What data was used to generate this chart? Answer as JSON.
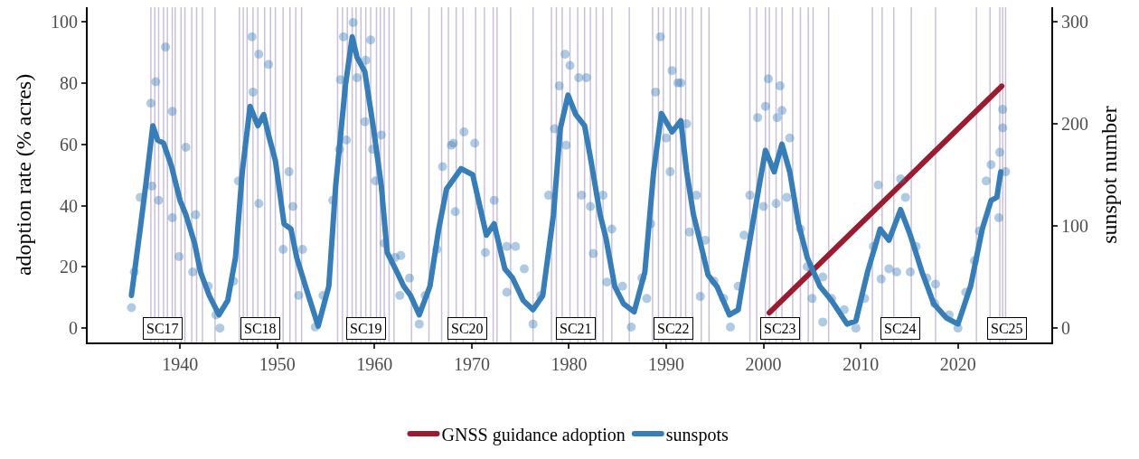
{
  "chart_data": {
    "type": "line",
    "xlabel": null,
    "ylabel": "adoption rate (% acres)",
    "y2label": "sunspot number",
    "xlim": [
      1930.5,
      2029.6
    ],
    "xticks": [
      1940,
      1950,
      1960,
      1970,
      1980,
      1990,
      2000,
      2010,
      2020
    ],
    "ylim": [
      -4.7,
      104.8
    ],
    "yticks": [
      0,
      20,
      40,
      60,
      80,
      100
    ],
    "y2lim": [
      -14,
      314
    ],
    "y2ticks": [
      0,
      100,
      200,
      300
    ],
    "grid": false,
    "legend": "bottom",
    "line_style": "solid",
    "series": [
      {
        "name": "GNSS guidance adoption",
        "color": "#9b1c31",
        "x": [
          2000.6,
          2024.5
        ],
        "values": [
          5,
          79
        ]
      },
      {
        "name": "sunspots",
        "type": "line",
        "axis": "y2",
        "color": "#377eb8",
        "x": [
          1935.0,
          1935.9,
          1936.5,
          1937.2,
          1937.7,
          1938.3,
          1939.1,
          1940.0,
          1940.6,
          1941.5,
          1942.1,
          1943.0,
          1944.0,
          1944.9,
          1945.7,
          1946.4,
          1947.2,
          1948.0,
          1948.6,
          1949.1,
          1949.8,
          1950.7,
          1951.4,
          1952.0,
          1952.9,
          1954.2,
          1955.3,
          1956.0,
          1957.0,
          1957.7,
          1958.2,
          1959.0,
          1959.9,
          1960.7,
          1961.3,
          1962.3,
          1963.0,
          1963.7,
          1964.6,
          1965.7,
          1966.6,
          1967.4,
          1968.9,
          1970.1,
          1971.5,
          1972.3,
          1973.4,
          1974.2,
          1975.3,
          1976.3,
          1977.3,
          1978.4,
          1979.1,
          1979.9,
          1980.7,
          1981.6,
          1982.2,
          1983.2,
          1983.8,
          1984.7,
          1985.6,
          1986.7,
          1987.8,
          1988.7,
          1989.5,
          1990.6,
          1991.5,
          1992.1,
          1992.8,
          1993.4,
          1994.3,
          1995.2,
          1996.5,
          1997.4,
          1998.3,
          1999.3,
          2000.2,
          2001.1,
          2001.9,
          2002.7,
          2003.6,
          2004.5,
          2005.8,
          2007.0,
          2008.6,
          2009.5,
          2010.7,
          2012.0,
          2012.9,
          2014.1,
          2015.1,
          2016.3,
          2017.5,
          2018.8,
          2020.0,
          2021.3,
          2022.5,
          2023.4,
          2024.0,
          2024.4
        ],
        "values": [
          32,
          97,
          142,
          198,
          184,
          181,
          159,
          125,
          111,
          83,
          55,
          32,
          13,
          27,
          69,
          153,
          217,
          198,
          209,
          189,
          164,
          102,
          97,
          69,
          41,
          2,
          41,
          139,
          237,
          285,
          265,
          251,
          195,
          139,
          74,
          55,
          41,
          32,
          13,
          41,
          97,
          136,
          156,
          150,
          91,
          102,
          58,
          49,
          27,
          18,
          32,
          111,
          195,
          228,
          209,
          198,
          167,
          111,
          88,
          41,
          24,
          16,
          55,
          153,
          210,
          192,
          203,
          153,
          111,
          88,
          52,
          41,
          13,
          18,
          69,
          125,
          174,
          153,
          180,
          153,
          102,
          69,
          41,
          27,
          4,
          7,
          55,
          97,
          86,
          116,
          91,
          55,
          24,
          10,
          4,
          41,
          97,
          125,
          128,
          153
        ]
      },
      {
        "type": "scatter",
        "axis": "y2",
        "color": "#377eb8",
        "marker": "circle",
        "x": [
          1935.0,
          1935.3,
          1935.9,
          1937.0,
          1937.5,
          1938.5,
          1937.1,
          1937.8,
          1939.2,
          1940.6,
          1939.9,
          1939.2,
          1941.6,
          1941.3,
          1942.9,
          1944.1,
          1943.7,
          1945.5,
          1946.0,
          1947.4,
          1948.1,
          1949.1,
          1947.5,
          1948.1,
          1951.2,
          1951.6,
          1950.6,
          1952.6,
          1952.2,
          1953.9,
          1954.7,
          1955.7,
          1956.4,
          1956.5,
          1956.8,
          1957.8,
          1959.6,
          1958.2,
          1959.1,
          1959.0,
          1957.1,
          1959.8,
          1960.1,
          1960.7,
          1961.0,
          1962.1,
          1962.7,
          1962.6,
          1963.6,
          1964.6,
          1965.2,
          1966.4,
          1967.0,
          1967.9,
          1968.1,
          1969.2,
          1970.3,
          1968.3,
          1971.4,
          1972.3,
          1973.6,
          1974.5,
          1973.6,
          1975.4,
          1976.3,
          1977.1,
          1977.9,
          1978.5,
          1979.0,
          1979.6,
          1980.1,
          1981.0,
          1981.8,
          1979.7,
          1981.3,
          1982.2,
          1982.5,
          1983.5,
          1984.4,
          1983.9,
          1985.5,
          1986.4,
          1987.5,
          1988.0,
          1988.4,
          1988.9,
          1989.4,
          1990.6,
          1991.2,
          1991.5,
          1990.4,
          1990.0,
          1992.1,
          1993.1,
          1992.4,
          1994.0,
          1993.5,
          1994.9,
          1995.9,
          1996.6,
          1997.4,
          1998.0,
          1998.6,
          1999.4,
          2000.5,
          2000.2,
          2001.7,
          2001.4,
          2001.3,
          2000.0,
          2001.9,
          2002.7,
          2002.4,
          2003.8,
          2004.5,
          2005.0,
          2006.1,
          2006.1,
          2007.0,
          2008.3,
          2009.5,
          2010.4,
          2011.3,
          2011.8,
          2012.1,
          2012.9,
          2014.1,
          2014.6,
          2013.7,
          2015.1,
          2015.7,
          2016.8,
          2017.7,
          2017.6,
          2019.1,
          2020.0,
          2020.8,
          2021.7,
          2022.2,
          2022.9,
          2023.4,
          2024.2,
          2024.3,
          2024.6,
          2024.6,
          2024.9
        ],
        "values": [
          20,
          55,
          128,
          220,
          241,
          275,
          139,
          125,
          212,
          177,
          70,
          108,
          111,
          55,
          41,
          0,
          13,
          46,
          144,
          285,
          268,
          258,
          231,
          122,
          153,
          119,
          77,
          77,
          32,
          1,
          32,
          125,
          175,
          243,
          285,
          299,
          282,
          245,
          262,
          202,
          184,
          175,
          144,
          189,
          83,
          69,
          71,
          32,
          49,
          4,
          32,
          77,
          158,
          179,
          181,
          192,
          181,
          114,
          74,
          125,
          80,
          80,
          35,
          58,
          4,
          32,
          130,
          195,
          237,
          268,
          257,
          245,
          245,
          179,
          130,
          119,
          73,
          130,
          97,
          45,
          41,
          1,
          49,
          29,
          102,
          231,
          285,
          252,
          240,
          240,
          153,
          186,
          200,
          130,
          94,
          86,
          31,
          46,
          29,
          1,
          41,
          91,
          130,
          206,
          244,
          217,
          237,
          206,
          122,
          119,
          213,
          186,
          128,
          97,
          60,
          29,
          50,
          6,
          29,
          18,
          0,
          29,
          80,
          140,
          48,
          58,
          146,
          128,
          55,
          55,
          80,
          49,
          43,
          24,
          13,
          0,
          35,
          66,
          95,
          144,
          160,
          108,
          172,
          214,
          196,
          153
        ]
      }
    ],
    "annotations": [
      {
        "text": "SC17",
        "x": 1938.2,
        "y": 0
      },
      {
        "text": "SC18",
        "x": 1948.3,
        "y": 0
      },
      {
        "text": "SC19",
        "x": 1959.1,
        "y": 0
      },
      {
        "text": "SC20",
        "x": 1969.5,
        "y": 0
      },
      {
        "text": "SC21",
        "x": 1980.7,
        "y": 0
      },
      {
        "text": "SC22",
        "x": 1990.7,
        "y": 0
      },
      {
        "text": "SC23",
        "x": 2001.7,
        "y": 0
      },
      {
        "text": "SC24",
        "x": 2014.1,
        "y": 0
      },
      {
        "text": "SC25",
        "x": 2025.0,
        "y": 0
      }
    ],
    "ref_lines": [
      {
        "axis": "x",
        "value": 1937.0,
        "color": "#7b62a8"
      },
      {
        "axis": "x",
        "value": 1937.4,
        "color": "#7b62a8"
      },
      {
        "axis": "x",
        "value": 1937.8,
        "color": "#7b62a8"
      },
      {
        "axis": "x",
        "value": 1938.3,
        "color": "#7b62a8"
      },
      {
        "axis": "x",
        "value": 1938.7,
        "color": "#7b62a8"
      },
      {
        "axis": "x",
        "value": 1939.2,
        "color": "#7b62a8"
      },
      {
        "axis": "x",
        "value": 1939.5,
        "color": "#7b62a8"
      },
      {
        "axis": "x",
        "value": 1940.1,
        "color": "#7b62a8"
      },
      {
        "axis": "x",
        "value": 1940.5,
        "color": "#7b62a8"
      },
      {
        "axis": "x",
        "value": 1941.2,
        "color": "#7b62a8"
      },
      {
        "axis": "x",
        "value": 1941.7,
        "color": "#7b62a8"
      },
      {
        "axis": "x",
        "value": 1942.3,
        "color": "#7b62a8"
      },
      {
        "axis": "x",
        "value": 1943.6,
        "color": "#7b62a8"
      },
      {
        "axis": "x",
        "value": 1946.1,
        "color": "#7b62a8"
      },
      {
        "axis": "x",
        "value": 1946.5,
        "color": "#7b62a8"
      },
      {
        "axis": "x",
        "value": 1946.9,
        "color": "#7b62a8"
      },
      {
        "axis": "x",
        "value": 1947.5,
        "color": "#7b62a8"
      },
      {
        "axis": "x",
        "value": 1948.0,
        "color": "#7b62a8"
      },
      {
        "axis": "x",
        "value": 1948.7,
        "color": "#7b62a8"
      },
      {
        "axis": "x",
        "value": 1949.3,
        "color": "#7b62a8"
      },
      {
        "axis": "x",
        "value": 1949.8,
        "color": "#7b62a8"
      },
      {
        "axis": "x",
        "value": 1950.6,
        "color": "#7b62a8"
      },
      {
        "axis": "x",
        "value": 1951.3,
        "color": "#7b62a8"
      },
      {
        "axis": "x",
        "value": 1951.9,
        "color": "#7b62a8"
      },
      {
        "axis": "x",
        "value": 1952.5,
        "color": "#7b62a8"
      },
      {
        "axis": "x",
        "value": 1956.2,
        "color": "#7b62a8"
      },
      {
        "axis": "x",
        "value": 1956.7,
        "color": "#7b62a8"
      },
      {
        "axis": "x",
        "value": 1957.2,
        "color": "#7b62a8"
      },
      {
        "axis": "x",
        "value": 1957.7,
        "color": "#7b62a8"
      },
      {
        "axis": "x",
        "value": 1958.1,
        "color": "#7b62a8"
      },
      {
        "axis": "x",
        "value": 1958.6,
        "color": "#7b62a8"
      },
      {
        "axis": "x",
        "value": 1959.1,
        "color": "#7b62a8"
      },
      {
        "axis": "x",
        "value": 1959.6,
        "color": "#7b62a8"
      },
      {
        "axis": "x",
        "value": 1960.2,
        "color": "#7b62a8"
      },
      {
        "axis": "x",
        "value": 1960.6,
        "color": "#7b62a8"
      },
      {
        "axis": "x",
        "value": 1961.0,
        "color": "#7b62a8"
      },
      {
        "axis": "x",
        "value": 1961.5,
        "color": "#7b62a8"
      },
      {
        "axis": "x",
        "value": 1962.0,
        "color": "#7b62a8"
      },
      {
        "axis": "x",
        "value": 1963.8,
        "color": "#7b62a8"
      },
      {
        "axis": "x",
        "value": 1965.6,
        "color": "#7b62a8"
      },
      {
        "axis": "x",
        "value": 1966.9,
        "color": "#7b62a8"
      },
      {
        "axis": "x",
        "value": 1967.6,
        "color": "#7b62a8"
      },
      {
        "axis": "x",
        "value": 1968.4,
        "color": "#7b62a8"
      },
      {
        "axis": "x",
        "value": 1969.1,
        "color": "#7b62a8"
      },
      {
        "axis": "x",
        "value": 1970.4,
        "color": "#7b62a8"
      },
      {
        "axis": "x",
        "value": 1971.3,
        "color": "#7b62a8"
      },
      {
        "axis": "x",
        "value": 1972.2,
        "color": "#7b62a8"
      },
      {
        "axis": "x",
        "value": 1972.6,
        "color": "#7b62a8"
      },
      {
        "axis": "x",
        "value": 1974.0,
        "color": "#7b62a8"
      },
      {
        "axis": "x",
        "value": 1976.3,
        "color": "#7b62a8"
      },
      {
        "axis": "x",
        "value": 1978.2,
        "color": "#7b62a8"
      },
      {
        "axis": "x",
        "value": 1978.7,
        "color": "#7b62a8"
      },
      {
        "axis": "x",
        "value": 1979.3,
        "color": "#7b62a8"
      },
      {
        "axis": "x",
        "value": 1980.1,
        "color": "#7b62a8"
      },
      {
        "axis": "x",
        "value": 1980.9,
        "color": "#7b62a8"
      },
      {
        "axis": "x",
        "value": 1981.6,
        "color": "#7b62a8"
      },
      {
        "axis": "x",
        "value": 1982.2,
        "color": "#7b62a8"
      },
      {
        "axis": "x",
        "value": 1982.8,
        "color": "#7b62a8"
      },
      {
        "axis": "x",
        "value": 1983.5,
        "color": "#7b62a8"
      },
      {
        "axis": "x",
        "value": 1984.4,
        "color": "#7b62a8"
      },
      {
        "axis": "x",
        "value": 1986.2,
        "color": "#7b62a8"
      },
      {
        "axis": "x",
        "value": 1988.6,
        "color": "#7b62a8"
      },
      {
        "axis": "x",
        "value": 1989.2,
        "color": "#7b62a8"
      },
      {
        "axis": "x",
        "value": 1989.7,
        "color": "#7b62a8"
      },
      {
        "axis": "x",
        "value": 1990.4,
        "color": "#7b62a8"
      },
      {
        "axis": "x",
        "value": 1991.0,
        "color": "#7b62a8"
      },
      {
        "axis": "x",
        "value": 1991.5,
        "color": "#7b62a8"
      },
      {
        "axis": "x",
        "value": 1992.0,
        "color": "#7b62a8"
      },
      {
        "axis": "x",
        "value": 1992.7,
        "color": "#7b62a8"
      },
      {
        "axis": "x",
        "value": 1993.6,
        "color": "#7b62a8"
      },
      {
        "axis": "x",
        "value": 1994.4,
        "color": "#7b62a8"
      },
      {
        "axis": "x",
        "value": 1998.6,
        "color": "#7b62a8"
      },
      {
        "axis": "x",
        "value": 1999.3,
        "color": "#7b62a8"
      },
      {
        "axis": "x",
        "value": 2000.2,
        "color": "#7b62a8"
      },
      {
        "axis": "x",
        "value": 2000.6,
        "color": "#7b62a8"
      },
      {
        "axis": "x",
        "value": 2001.3,
        "color": "#7b62a8"
      },
      {
        "axis": "x",
        "value": 2001.9,
        "color": "#7b62a8"
      },
      {
        "axis": "x",
        "value": 2003.0,
        "color": "#7b62a8"
      },
      {
        "axis": "x",
        "value": 2003.8,
        "color": "#7b62a8"
      },
      {
        "axis": "x",
        "value": 2004.6,
        "color": "#7b62a8"
      },
      {
        "axis": "x",
        "value": 2005.1,
        "color": "#7b62a8"
      },
      {
        "axis": "x",
        "value": 2006.7,
        "color": "#7b62a8"
      },
      {
        "axis": "x",
        "value": 2011.2,
        "color": "#7b62a8"
      },
      {
        "axis": "x",
        "value": 2012.2,
        "color": "#7b62a8"
      },
      {
        "axis": "x",
        "value": 2013.4,
        "color": "#7b62a8"
      },
      {
        "axis": "x",
        "value": 2015.2,
        "color": "#7b62a8"
      },
      {
        "axis": "x",
        "value": 2017.7,
        "color": "#7b62a8"
      },
      {
        "axis": "x",
        "value": 2021.9,
        "color": "#7b62a8"
      },
      {
        "axis": "x",
        "value": 2023.3,
        "color": "#7b62a8"
      },
      {
        "axis": "x",
        "value": 2024.3,
        "color": "#7b62a8"
      },
      {
        "axis": "x",
        "value": 2024.6,
        "color": "#7b62a8"
      },
      {
        "axis": "x",
        "value": 2024.9,
        "color": "#7b62a8"
      }
    ]
  }
}
